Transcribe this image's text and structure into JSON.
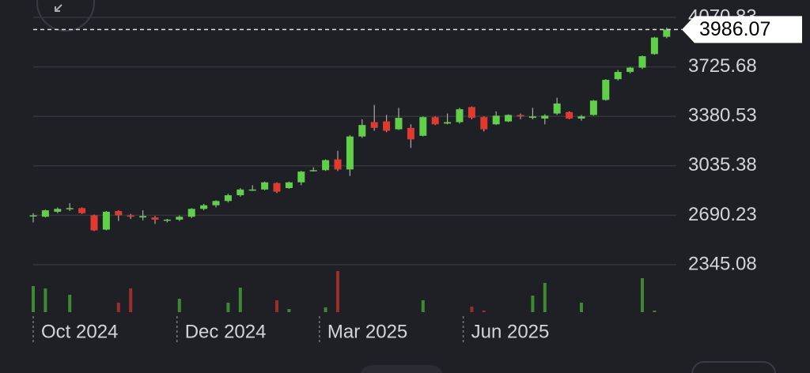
{
  "chart_data": {
    "type": "candlestick",
    "current_price": 3986.07,
    "ylim": [
      1590,
      4192
    ],
    "yticks": [
      2345.08,
      2690.23,
      3035.38,
      3380.53,
      3725.68,
      4070.83
    ],
    "grid": true,
    "up_color": "#5fd048",
    "down_color": "#e2392e",
    "xticks": [
      {
        "value": 0,
        "label": "Oct 2024"
      },
      {
        "value": 11.8,
        "label": "Dec 2024"
      },
      {
        "value": 23.5,
        "label": "Mar 2025"
      },
      {
        "value": 35.3,
        "label": "Jun 2025"
      }
    ],
    "open": [
      2683,
      2680,
      2715,
      2735,
      2740,
      2690,
      2590,
      2720,
      2690,
      2675,
      2675,
      2655,
      2660,
      2680,
      2735,
      2760,
      2790,
      2830,
      2865,
      2870,
      2915,
      2880,
      2920,
      3000,
      3005,
      3080,
      3010,
      3240,
      3340,
      3345,
      3290,
      3300,
      3245,
      3375,
      3330,
      3340,
      3445,
      3375,
      3325,
      3345,
      3390,
      3370,
      3365,
      3400,
      3410,
      3365,
      3390,
      3495,
      3640,
      3690,
      3720,
      3815,
      3935
    ],
    "close": [
      2690,
      2725,
      2735,
      2740,
      2705,
      2585,
      2715,
      2690,
      2680,
      2685,
      2660,
      2660,
      2680,
      2735,
      2760,
      2790,
      2830,
      2870,
      2870,
      2920,
      2855,
      2920,
      2995,
      3005,
      3075,
      3010,
      3240,
      3320,
      3300,
      3280,
      3370,
      3220,
      3375,
      3325,
      3340,
      3430,
      3370,
      3290,
      3385,
      3390,
      3380,
      3380,
      3385,
      3470,
      3365,
      3380,
      3490,
      3635,
      3690,
      3720,
      3800,
      3930,
      3986.07
    ],
    "high": [
      2705,
      2730,
      2745,
      2775,
      2745,
      2695,
      2720,
      2725,
      2700,
      2725,
      2685,
      2665,
      2690,
      2740,
      2770,
      2795,
      2840,
      2880,
      2900,
      2925,
      2920,
      2925,
      3000,
      3025,
      3080,
      3140,
      3250,
      3360,
      3460,
      3390,
      3440,
      3325,
      3380,
      3380,
      3400,
      3440,
      3450,
      3380,
      3415,
      3395,
      3400,
      3440,
      3395,
      3510,
      3415,
      3390,
      3495,
      3640,
      3705,
      3725,
      3805,
      3935,
      4000
    ],
    "low": [
      2640,
      2675,
      2705,
      2720,
      2700,
      2580,
      2585,
      2650,
      2665,
      2655,
      2630,
      2640,
      2650,
      2670,
      2725,
      2745,
      2780,
      2820,
      2860,
      2865,
      2845,
      2875,
      2900,
      2995,
      3000,
      3000,
      2965,
      3230,
      3280,
      3270,
      3285,
      3160,
      3240,
      3320,
      3325,
      3330,
      3360,
      3275,
      3320,
      3340,
      3360,
      3360,
      3325,
      3390,
      3360,
      3350,
      3385,
      3490,
      3630,
      3680,
      3710,
      3810,
      3925
    ],
    "volume": [
      33,
      30,
      0,
      22,
      0,
      0,
      0,
      12,
      30,
      0,
      0,
      0,
      17,
      0,
      0,
      0,
      12,
      31,
      0,
      0,
      15,
      4,
      0,
      0,
      6,
      52,
      0,
      0,
      0,
      0,
      0,
      0,
      15,
      0,
      0,
      0,
      7,
      2,
      0,
      0,
      0,
      21,
      37,
      0,
      0,
      12,
      0,
      0,
      0,
      0,
      43,
      2,
      0
    ]
  }
}
